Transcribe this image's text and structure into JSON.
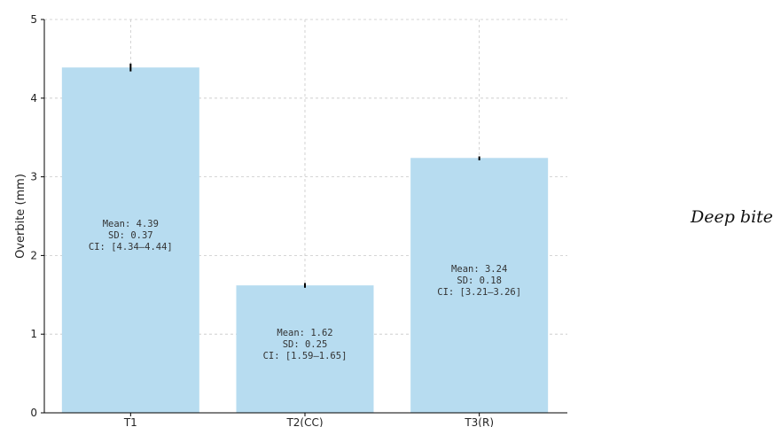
{
  "side_label": "Deep bite",
  "chart_data": {
    "type": "bar",
    "title": "",
    "xlabel": "",
    "ylabel": "Overbite (mm)",
    "categories": [
      "T1",
      "T2(CC)",
      "T3(R)"
    ],
    "values": [
      4.39,
      1.62,
      3.24
    ],
    "ci": [
      [
        4.34,
        4.44
      ],
      [
        1.59,
        1.65
      ],
      [
        3.21,
        3.26
      ]
    ],
    "ylim": [
      0,
      5
    ],
    "yticks": [
      "0",
      "1",
      "2",
      "3",
      "4",
      "5"
    ],
    "grid": true,
    "bar_color": "#b7dcf0",
    "annotations": [
      {
        "mean": "Mean: 4.39",
        "sd": "SD: 0.37",
        "ci": "CI: [4.34–4.44]"
      },
      {
        "mean": "Mean: 1.62",
        "sd": "SD: 0.25",
        "ci": "CI: [1.59–1.65]"
      },
      {
        "mean": "Mean: 3.24",
        "sd": "SD: 0.18",
        "ci": "CI: [3.21–3.26]"
      }
    ]
  }
}
